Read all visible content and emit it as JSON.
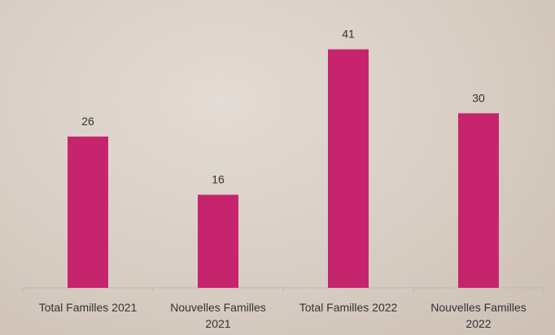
{
  "chart_data": {
    "type": "bar",
    "categories": [
      "Total Familles 2021",
      "Nouvelles Familles 2021",
      "Total Familles 2022",
      "Nouvelles Familles 2022"
    ],
    "values": [
      26,
      16,
      41,
      30
    ],
    "color": "#c6256e",
    "ylim": [
      0,
      45
    ]
  }
}
